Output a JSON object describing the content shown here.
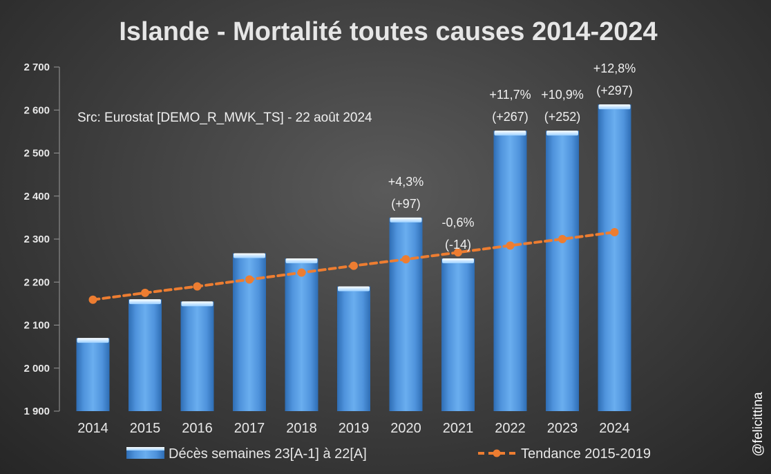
{
  "chart_data": {
    "type": "bar",
    "title": "Islande - Mortalité toutes causes 2014-2024",
    "source": "Src: Eurostat [DEMO_R_MWK_TS] - 22 août 2024",
    "watermark": "@felicittina",
    "categories": [
      "2014",
      "2015",
      "2016",
      "2017",
      "2018",
      "2019",
      "2020",
      "2021",
      "2022",
      "2023",
      "2024"
    ],
    "ylim": [
      1900,
      2700
    ],
    "yticks": [
      1900,
      2000,
      2100,
      2200,
      2300,
      2400,
      2500,
      2600,
      2700
    ],
    "ytick_labels": [
      "1 900",
      "2 000",
      "2 100",
      "2 200",
      "2 300",
      "2 400",
      "2 500",
      "2 600",
      "2 700"
    ],
    "series": [
      {
        "name": "Décès semaines 23[A-1] à 22[A]",
        "type": "bar",
        "color": "#5b9bd5",
        "values": [
          2070,
          2160,
          2155,
          2267,
          2255,
          2190,
          2350,
          2255,
          2552,
          2552,
          2613
        ]
      },
      {
        "name": "Tendance 2015-2019",
        "type": "line",
        "style": "dashed",
        "color": "#ed7d31",
        "values": [
          2159,
          2175,
          2190,
          2206,
          2222,
          2238,
          2253,
          2269,
          2285,
          2300,
          2316
        ]
      }
    ],
    "annotations": [
      {
        "category": "2020",
        "lines": [
          "+4,3%",
          "(+97)"
        ]
      },
      {
        "category": "2021",
        "lines": [
          "-0,6%",
          "(-14)"
        ]
      },
      {
        "category": "2022",
        "lines": [
          "+11,7%",
          "(+267)"
        ]
      },
      {
        "category": "2023",
        "lines": [
          "+10,9%",
          "(+252)"
        ]
      },
      {
        "category": "2024",
        "lines": [
          "+12,8%",
          "(+297)"
        ]
      }
    ],
    "legend_position": "bottom",
    "grid": false
  }
}
